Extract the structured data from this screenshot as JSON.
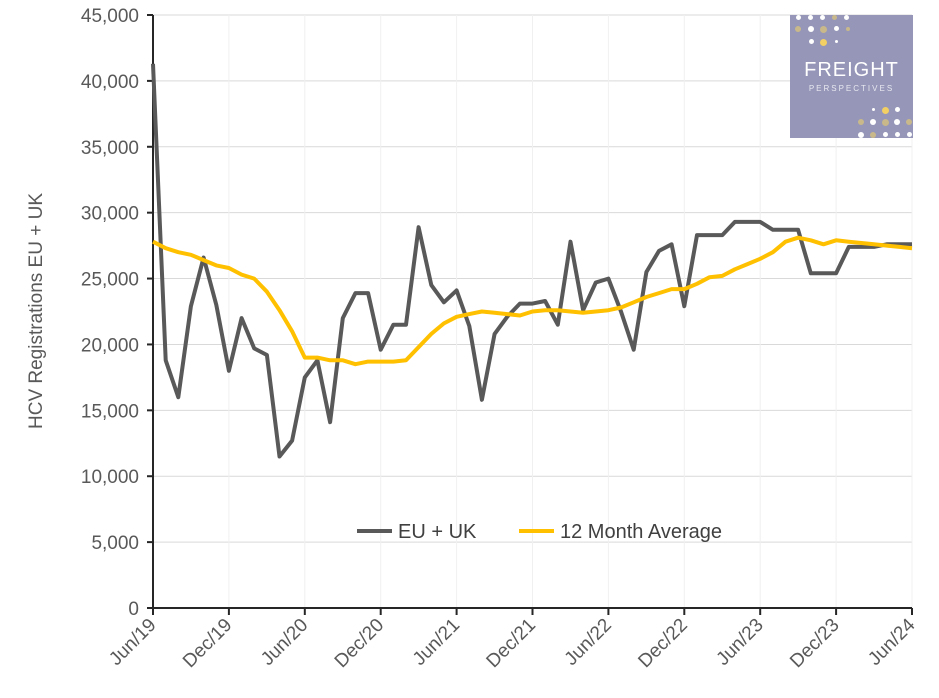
{
  "chart_data": {
    "type": "line",
    "title": "",
    "xlabel": "",
    "ylabel": "HCV Registrations EU + UK",
    "ylim": [
      0,
      45000
    ],
    "yticks": [
      0,
      5000,
      10000,
      15000,
      20000,
      25000,
      30000,
      35000,
      40000,
      45000
    ],
    "ytick_labels": [
      "0",
      "5,000",
      "10,000",
      "15,000",
      "20,000",
      "25,000",
      "30,000",
      "35,000",
      "40,000",
      "45,000"
    ],
    "xtick_labels": [
      "Jun/19",
      "Dec/19",
      "Jun/20",
      "Dec/20",
      "Jun/21",
      "Dec/21",
      "Jun/22",
      "Dec/22",
      "Jun/23",
      "Dec/23",
      "Jun/24"
    ],
    "x_months_from_jun19": 60,
    "grid": true,
    "legend_position": "bottom-center",
    "series": [
      {
        "name": "EU + UK",
        "color": "#595959",
        "values": [
          41300,
          18800,
          16000,
          22900,
          26600,
          23000,
          18000,
          22000,
          19700,
          19200,
          11500,
          12700,
          17500,
          18800,
          14100,
          22000,
          23900,
          23900,
          19600,
          21500,
          21500,
          28900,
          24500,
          23200,
          24100,
          21400,
          15800,
          20800,
          22100,
          23100,
          23100,
          23300,
          21500,
          27800,
          22600,
          24700,
          25000,
          22500,
          19600,
          25500,
          27100,
          27600,
          22900,
          28300,
          28300,
          28300,
          29300,
          29300,
          29300,
          28700,
          28700,
          28700,
          25400,
          25400,
          25400,
          27400,
          27400,
          27400,
          27600,
          27600,
          27600
        ]
      },
      {
        "name": "12 Month Average",
        "color": "#ffc000",
        "values": [
          27800,
          27300,
          27000,
          26800,
          26400,
          26000,
          25800,
          25300,
          25000,
          24000,
          22600,
          21000,
          19000,
          19000,
          18800,
          18800,
          18500,
          18700,
          18700,
          18700,
          18800,
          19800,
          20800,
          21600,
          22100,
          22300,
          22500,
          22400,
          22300,
          22200,
          22500,
          22600,
          22600,
          22500,
          22400,
          22500,
          22600,
          22800,
          23200,
          23600,
          23900,
          24200,
          24200,
          24600,
          25100,
          25200,
          25700,
          26100,
          26500,
          27000,
          27800,
          28100,
          27900,
          27600,
          27900,
          27800,
          27700,
          27600,
          27500,
          27400,
          27300
        ]
      }
    ]
  },
  "logo": {
    "title": "FREIGHT",
    "subtitle": "PERSPECTIVES",
    "color": "#9596b8"
  }
}
